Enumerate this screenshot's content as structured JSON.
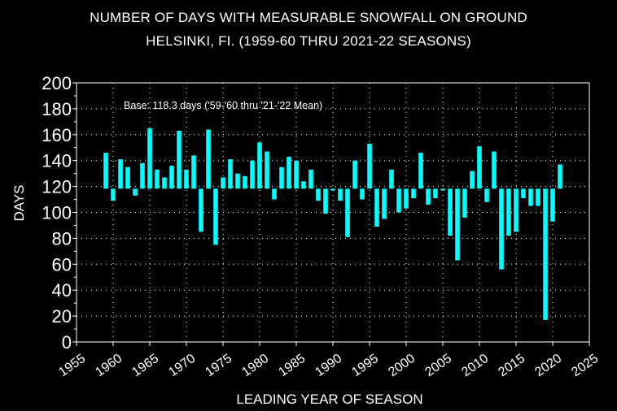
{
  "chart_data": {
    "type": "bar",
    "title": "NUMBER OF DAYS WITH MEASURABLE SNOWFALL ON GROUND",
    "subtitle": "HELSINKI, FI. (1959-60 THRU 2021-22 SEASONS)",
    "xlabel": "LEADING YEAR OF SEASON",
    "ylabel": "DAYS",
    "annotation": "Base: 118.3 days ('59-'60 thru '21-'22 Mean)",
    "baseline": 118.3,
    "xlim": [
      1955,
      2025
    ],
    "ylim": [
      0,
      200
    ],
    "x_ticks": [
      1955,
      1960,
      1965,
      1970,
      1975,
      1980,
      1985,
      1990,
      1995,
      2000,
      2005,
      2010,
      2015,
      2020,
      2025
    ],
    "y_ticks": [
      0,
      20,
      40,
      60,
      80,
      100,
      120,
      140,
      160,
      180,
      200
    ],
    "grid": true,
    "bar_color": "#00ffff",
    "background": "#000000",
    "x": [
      1959,
      1960,
      1961,
      1962,
      1963,
      1964,
      1965,
      1966,
      1967,
      1968,
      1969,
      1970,
      1971,
      1972,
      1973,
      1974,
      1975,
      1976,
      1977,
      1978,
      1979,
      1980,
      1981,
      1982,
      1983,
      1984,
      1985,
      1986,
      1987,
      1988,
      1989,
      1990,
      1991,
      1992,
      1993,
      1994,
      1995,
      1996,
      1997,
      1998,
      1999,
      2000,
      2001,
      2002,
      2003,
      2004,
      2005,
      2006,
      2007,
      2008,
      2009,
      2010,
      2011,
      2012,
      2013,
      2014,
      2015,
      2016,
      2017,
      2018,
      2019,
      2020,
      2021
    ],
    "values": [
      146,
      109,
      141,
      135,
      113,
      138,
      165,
      133,
      127,
      136,
      163,
      133,
      144,
      85,
      164,
      75,
      127,
      141,
      130,
      128,
      140,
      154,
      147,
      110,
      135,
      143,
      140,
      124,
      133,
      109,
      99,
      117,
      109,
      81,
      140,
      110,
      153,
      89,
      95,
      133,
      100,
      103,
      111,
      146,
      106,
      111,
      117,
      82,
      63,
      96,
      132,
      151,
      108,
      147,
      56,
      82,
      85,
      111,
      105,
      105,
      17,
      93,
      137
    ]
  }
}
